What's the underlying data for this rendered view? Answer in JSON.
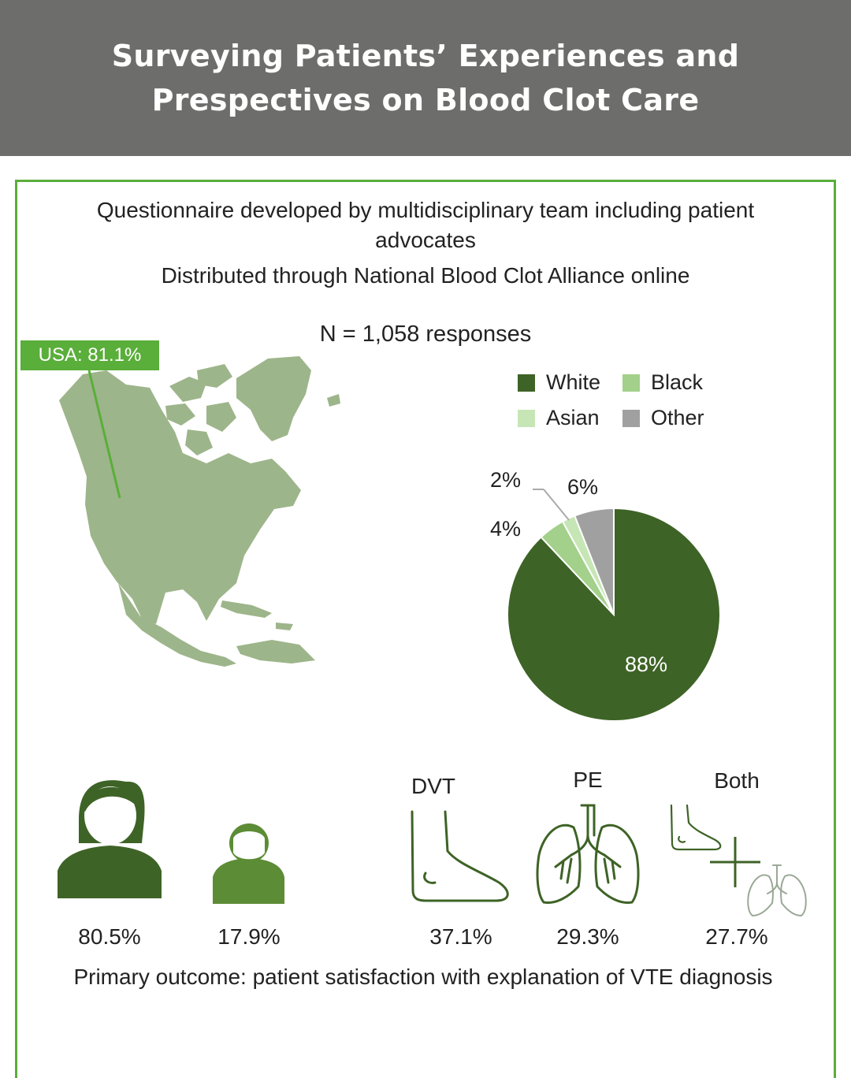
{
  "header": {
    "title_line1": "Surveying Patients’ Experiences and",
    "title_line2": "Prespectives on Blood Clot Care"
  },
  "intro": {
    "line1": "Questionnaire developed by multidisciplinary team including  patient",
    "line1b": "advocates",
    "line2": "Distributed through National Blood Clot Alliance online"
  },
  "responses": "N = 1,058 responses",
  "map": {
    "usa_label": "USA: 81.1%",
    "usa_share": 81.1
  },
  "colors": {
    "white": "#3e6326",
    "black": "#a3d08a",
    "asian": "#c7e6b6",
    "other": "#a0a0a0",
    "accent": "#5aae3a"
  },
  "chart_data": {
    "type": "pie",
    "legend": [
      "White",
      "Black",
      "Asian",
      "Other"
    ],
    "slices": [
      {
        "name": "White",
        "value": 88,
        "label": "88%"
      },
      {
        "name": "Black",
        "value": 4,
        "label": "4%"
      },
      {
        "name": "Asian",
        "value": 2,
        "label": "2%"
      },
      {
        "name": "Other",
        "value": 6,
        "label": "6%"
      }
    ]
  },
  "gender": {
    "female_icon": "woman-icon",
    "female_pct": "80.5%",
    "male_icon": "man-icon",
    "male_pct": "17.9%"
  },
  "conditions": [
    {
      "label": "DVT",
      "icon": "foot-icon",
      "pct": "37.1%"
    },
    {
      "label": "PE",
      "icon": "lungs-icon",
      "pct": "29.3%"
    },
    {
      "label": "Both",
      "icon": "foot-plus-lungs-icon",
      "pct": "27.7%"
    }
  ],
  "outcome": "Primary outcome: patient satisfaction with explanation of VTE diagnosis"
}
